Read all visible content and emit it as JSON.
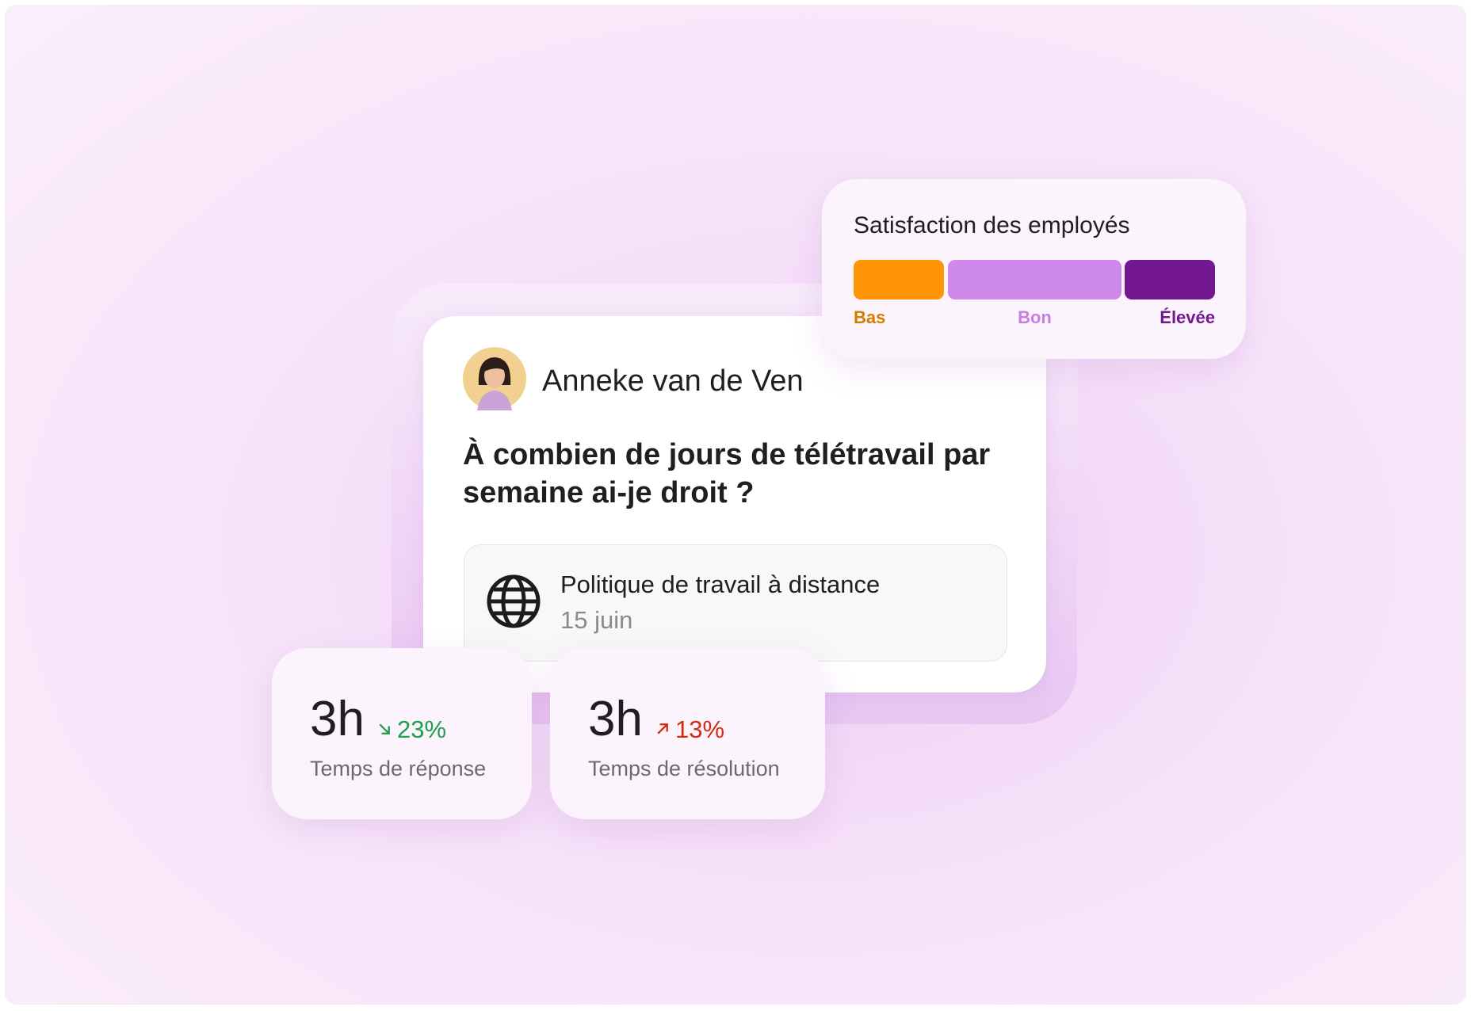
{
  "satisfaction": {
    "title": "Satisfaction des employés",
    "levels": [
      {
        "label": "Bas",
        "color": "#ff9505",
        "text_color": "#d97a00"
      },
      {
        "label": "Bon",
        "color": "#cf89ea",
        "text_color": "#c47fe0"
      },
      {
        "label": "Élevée",
        "color": "#741891",
        "text_color": "#741891"
      }
    ]
  },
  "question_card": {
    "author": "Anneke van de Ven",
    "question": "À combien de jours de télétravail par semaine ai-je droit ?",
    "document": {
      "title": "Politique de travail à distance",
      "date": "15 juin"
    }
  },
  "metrics": [
    {
      "value": "3h",
      "change": "23%",
      "change_color": "#1e9e4f",
      "label": "Temps de réponse"
    },
    {
      "value": "3h",
      "change": "13%",
      "change_color": "#d42a0c",
      "label": "Temps de résolution"
    }
  ]
}
